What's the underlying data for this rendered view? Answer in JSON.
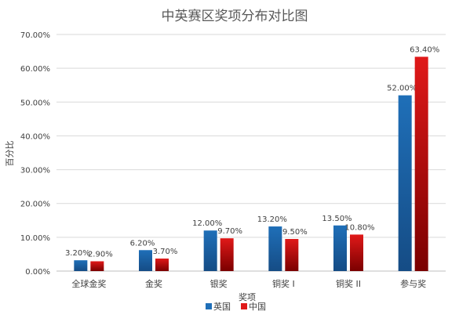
{
  "chart_data": {
    "type": "bar",
    "title": "中英赛区奖项分布对比图",
    "xlabel": "奖项",
    "ylabel": "百分比",
    "categories": [
      "全球金奖",
      "金奖",
      "银奖",
      "铜奖 I",
      "铜奖 II",
      "参与奖"
    ],
    "series": [
      {
        "name": "英国",
        "values": [
          3.2,
          6.2,
          12.0,
          13.2,
          13.5,
          52.0
        ],
        "labels": [
          "3.20%",
          "6.20%",
          "12.00%",
          "13.20%",
          "13.50%",
          "52.00%"
        ],
        "color": "#1F6FB8",
        "color_dark": "#154C85"
      },
      {
        "name": "中国",
        "values": [
          2.9,
          3.7,
          9.7,
          9.5,
          10.8,
          63.4
        ],
        "labels": [
          "2.90%",
          "3.70%",
          "9.70%",
          "9.50%",
          "10.80%",
          "63.40%"
        ],
        "color": "#E01919",
        "color_dark": "#7A0000"
      }
    ],
    "ylim": [
      0,
      70
    ],
    "yticks": [
      "0.00%",
      "10.00%",
      "20.00%",
      "30.00%",
      "40.00%",
      "50.00%",
      "60.00%",
      "70.00%"
    ],
    "grid": true,
    "legend_position": "bottom-center"
  }
}
